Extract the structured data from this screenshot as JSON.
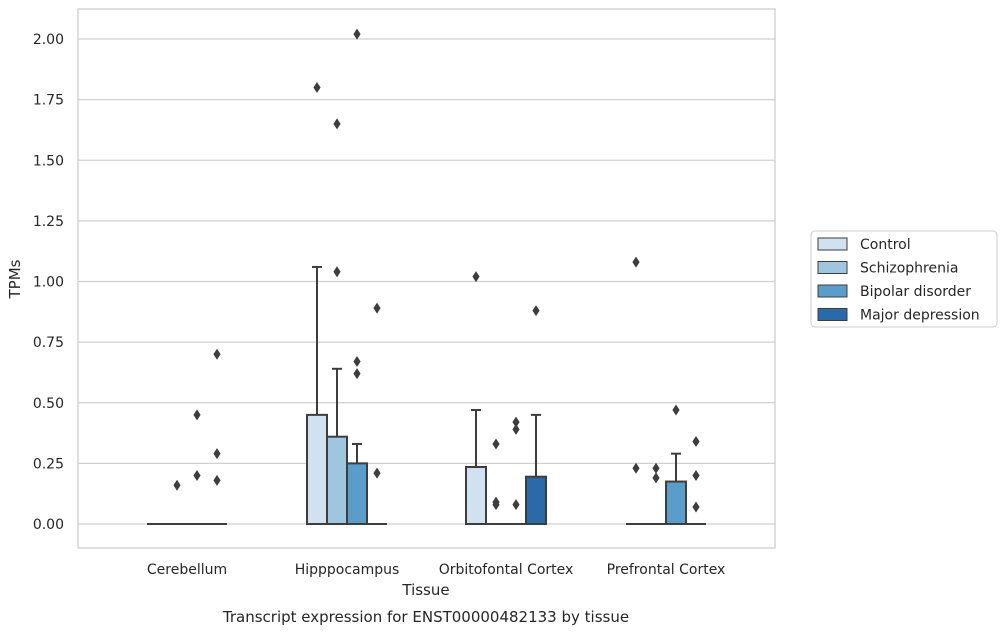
{
  "chart_data": {
    "type": "boxplot",
    "xlabel": "Tissue",
    "ylabel": "TPMs",
    "caption": "Transcript expression for ENST00000482133 by tissue",
    "ylim": [
      -0.1,
      2.12
    ],
    "yticks": [
      "0.00",
      "0.25",
      "0.50",
      "0.75",
      "1.00",
      "1.25",
      "1.50",
      "1.75",
      "2.00"
    ],
    "ytick_values": [
      0,
      0.25,
      0.5,
      0.75,
      1.0,
      1.25,
      1.5,
      1.75,
      2.0
    ],
    "grid": true,
    "legend_position": "right",
    "categories": [
      "Cerebellum",
      "Hipppocampus",
      "Orbitofontal Cortex",
      "Prefrontal Cortex"
    ],
    "series": [
      {
        "name": "Control",
        "color": "#d1e1ef",
        "boxes": [
          {
            "q1": 0,
            "median": 0,
            "q3": 0,
            "whisker_low": 0,
            "whisker_high": 0,
            "outliers": []
          },
          {
            "q1": 0,
            "median": 0,
            "q3": 0.45,
            "whisker_low": 0,
            "whisker_high": 1.06,
            "outliers": [
              1.8
            ]
          },
          {
            "q1": 0,
            "median": 0,
            "q3": 0.235,
            "whisker_low": 0,
            "whisker_high": 0.47,
            "outliers": [
              1.02
            ]
          },
          {
            "q1": 0,
            "median": 0,
            "q3": 0,
            "whisker_low": 0,
            "whisker_high": 0,
            "outliers": [
              1.08,
              0.23
            ]
          }
        ]
      },
      {
        "name": "Schizophrenia",
        "color": "#9ec6df",
        "boxes": [
          {
            "q1": 0,
            "median": 0,
            "q3": 0,
            "whisker_low": 0,
            "whisker_high": 0,
            "outliers": [
              0.16
            ]
          },
          {
            "q1": 0,
            "median": 0,
            "q3": 0.36,
            "whisker_low": 0,
            "whisker_high": 0.64,
            "outliers": [
              1.65,
              1.04
            ]
          },
          {
            "q1": 0,
            "median": 0,
            "q3": 0,
            "whisker_low": 0,
            "whisker_high": 0,
            "outliers": [
              0.33,
              0.09,
              0.08
            ]
          },
          {
            "q1": 0,
            "median": 0,
            "q3": 0,
            "whisker_low": 0,
            "whisker_high": 0,
            "outliers": [
              0.23,
              0.19
            ]
          }
        ]
      },
      {
        "name": "Bipolar disorder",
        "color": "#5a9dca",
        "boxes": [
          {
            "q1": 0,
            "median": 0,
            "q3": 0,
            "whisker_low": 0,
            "whisker_high": 0,
            "outliers": [
              0.45,
              0.2
            ]
          },
          {
            "q1": 0,
            "median": 0,
            "q3": 0.25,
            "whisker_low": 0,
            "whisker_high": 0.33,
            "outliers": [
              2.02,
              0.67,
              0.62
            ]
          },
          {
            "q1": 0,
            "median": 0,
            "q3": 0,
            "whisker_low": 0,
            "whisker_high": 0,
            "outliers": [
              0.42,
              0.39,
              0.08
            ]
          },
          {
            "q1": 0,
            "median": 0,
            "q3": 0.175,
            "whisker_low": 0,
            "whisker_high": 0.29,
            "outliers": [
              0.47
            ]
          }
        ]
      },
      {
        "name": "Major depression",
        "color": "#2a6aa8",
        "boxes": [
          {
            "q1": 0,
            "median": 0,
            "q3": 0,
            "whisker_low": 0,
            "whisker_high": 0,
            "outliers": [
              0.7,
              0.29,
              0.18
            ]
          },
          {
            "q1": 0,
            "median": 0,
            "q3": 0,
            "whisker_low": 0,
            "whisker_high": 0,
            "outliers": [
              0.89,
              0.21
            ]
          },
          {
            "q1": 0,
            "median": 0,
            "q3": 0.195,
            "whisker_low": 0,
            "whisker_high": 0.45,
            "outliers": [
              0.88
            ]
          },
          {
            "q1": 0,
            "median": 0,
            "q3": 0,
            "whisker_low": 0,
            "whisker_high": 0,
            "outliers": [
              0.34,
              0.2,
              0.07
            ]
          }
        ]
      }
    ]
  }
}
